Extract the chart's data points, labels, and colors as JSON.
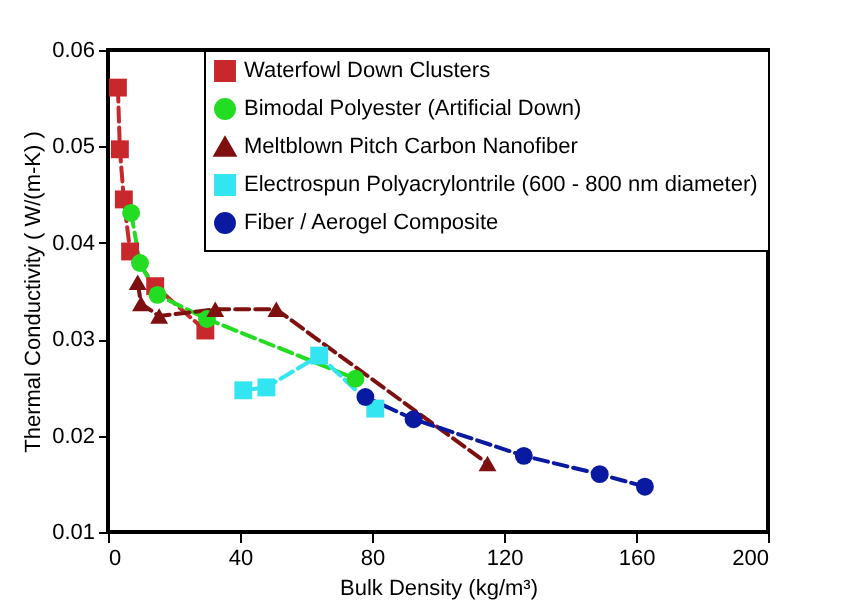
{
  "chart_data": {
    "type": "line",
    "xlabel": "Bulk Density (kg/m³)",
    "ylabel": "Thermal Conductivity ( W/(m-K) )",
    "xlim": [
      0,
      200
    ],
    "xticks": [
      0,
      40,
      80,
      120,
      160,
      200
    ],
    "ylim": [
      0.01,
      0.06
    ],
    "yticks": [
      0.01,
      0.02,
      0.03,
      0.04,
      0.05,
      0.06
    ],
    "grid": false,
    "legend": "top right",
    "line_style": "dashed",
    "series": [
      {
        "name": "Waterfowl Down Clusters",
        "color": "#c8282c",
        "marker": "square",
        "x": [
          3,
          3.6,
          4.8,
          6.7,
          14.3,
          29.5
        ],
        "values": [
          0.0561,
          0.0497,
          0.0445,
          0.0391,
          0.0355,
          0.0309
        ]
      },
      {
        "name": "Bimodal Polyester (Artificial Down)",
        "color": "#22dd22",
        "marker": "circle",
        "x": [
          7,
          9.7,
          15,
          30,
          75
        ],
        "values": [
          0.0431,
          0.0379,
          0.0346,
          0.0321,
          0.0259
        ]
      },
      {
        "name": "Meltblown Pitch Carbon Nanofiber",
        "color": "#7f1010",
        "marker": "triangle",
        "x": [
          9,
          10,
          15.5,
          32.5,
          51,
          115
        ],
        "values": [
          0.0359,
          0.0337,
          0.0324,
          0.0331,
          0.0331,
          0.0171
        ]
      },
      {
        "name": "Electrospun Polyacrylontrile\n(600 - 800 nm diameter)",
        "color": "#33e5f0",
        "marker": "square",
        "x": [
          41,
          48,
          64,
          81
        ],
        "values": [
          0.0247,
          0.025,
          0.0283,
          0.0228
        ]
      },
      {
        "name": "Fiber / Aerogel Composite",
        "color": "#0a1aa0",
        "marker": "circle",
        "x": [
          78,
          92.6,
          126,
          149,
          162.7
        ],
        "values": [
          0.024,
          0.0217,
          0.0179,
          0.016,
          0.0147
        ]
      }
    ]
  }
}
